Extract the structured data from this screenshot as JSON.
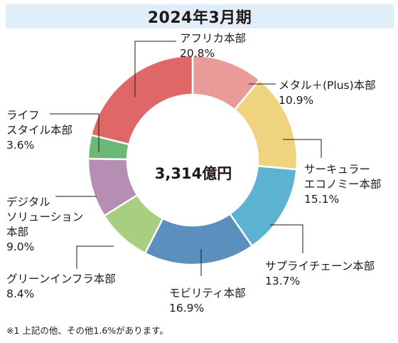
{
  "chart_data": {
    "type": "pie",
    "title": "2024年3月期",
    "total_label": "3,314億円",
    "footnote": "※1 上記の他、その他1.6%があります。",
    "slices": [
      {
        "lines": [
          "メタル＋(Plus)本部"
        ],
        "pct_text": "10.9%",
        "value": 10.9,
        "color": "#e89b99"
      },
      {
        "lines": [
          "サーキュラー",
          "エコノミー本部"
        ],
        "pct_text": "15.1%",
        "value": 15.1,
        "color": "#f0d37e"
      },
      {
        "lines": [
          "サプライチェーン本部"
        ],
        "pct_text": "13.7%",
        "value": 13.7,
        "color": "#5bb2d1"
      },
      {
        "lines": [
          "モビリティ本部"
        ],
        "pct_text": "16.9%",
        "value": 16.9,
        "color": "#5b8fbd"
      },
      {
        "lines": [
          "グリーンインフラ本部"
        ],
        "pct_text": "8.4%",
        "value": 8.4,
        "color": "#a8cf80"
      },
      {
        "lines": [
          "デジタル",
          "ソリューション",
          "本部"
        ],
        "pct_text": "9.0%",
        "value": 9.0,
        "color": "#b78eb3"
      },
      {
        "lines": [
          "ライフ",
          "スタイル本部"
        ],
        "pct_text": "3.6%",
        "value": 3.6,
        "color": "#6cb877"
      },
      {
        "lines": [
          "アフリカ本部"
        ],
        "pct_text": "20.8%",
        "value": 20.8,
        "color": "#e06767"
      }
    ]
  }
}
